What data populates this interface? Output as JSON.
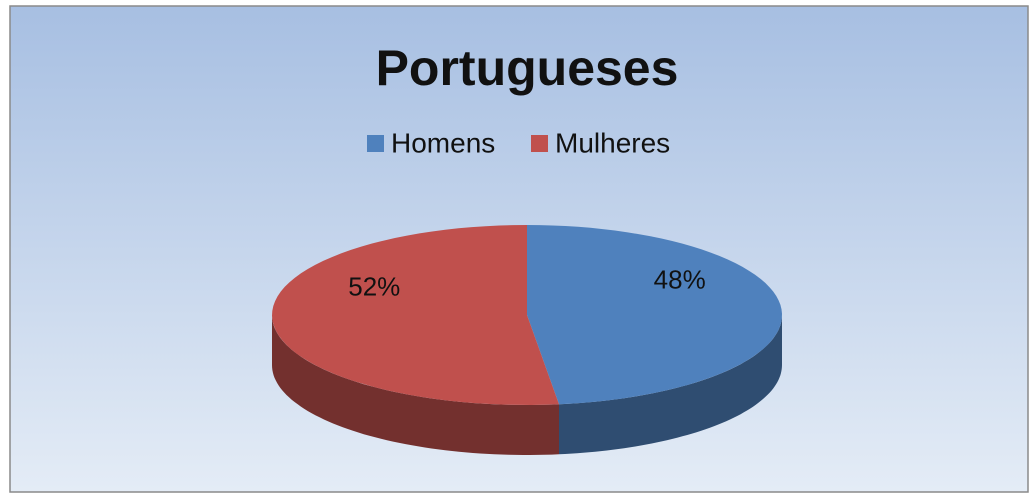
{
  "chart_data": {
    "type": "pie",
    "title": "Portugueses",
    "categories": [
      "Homens",
      "Mulheres"
    ],
    "values": [
      48,
      52
    ],
    "value_labels": [
      "48%",
      "52%"
    ],
    "colors": [
      "#4f81bd",
      "#c0504d"
    ],
    "legend": "top"
  }
}
